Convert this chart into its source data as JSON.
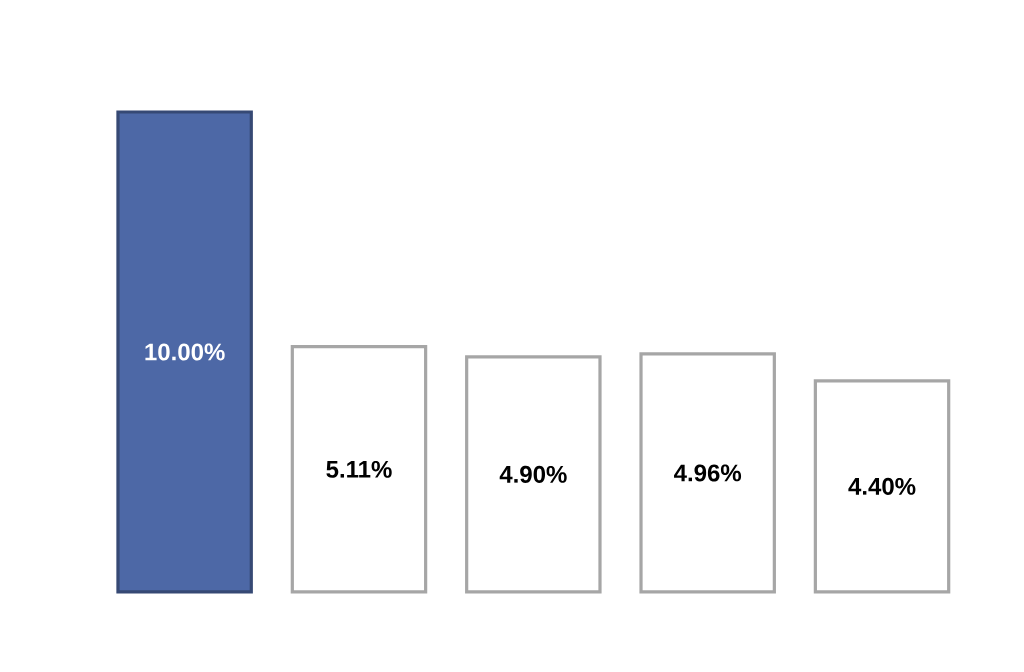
{
  "chart_data": {
    "type": "bar",
    "categories": [
      null,
      null,
      null,
      null,
      null
    ],
    "values": [
      10.0,
      5.11,
      4.9,
      4.96,
      4.4
    ],
    "colors": [
      "#4d68a6",
      "#ffffff",
      "#ffffff",
      "#ffffff",
      "#ffffff"
    ],
    "value_labels": [
      "10.00%",
      "5.11%",
      "4.90%",
      "4.96%",
      "4.40%"
    ]
  }
}
